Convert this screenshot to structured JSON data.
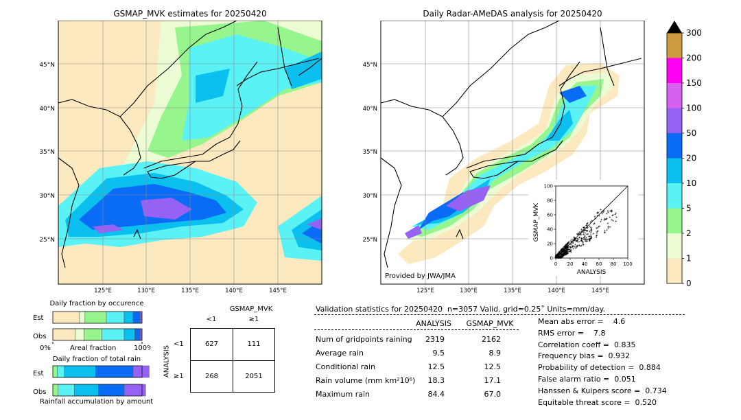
{
  "left_map": {
    "title": "GSMAP_MVK estimates for 20250420",
    "lat_ticks": [
      "25°N",
      "30°N",
      "35°N",
      "40°N",
      "45°N"
    ],
    "lon_ticks": [
      "125°E",
      "130°E",
      "135°E",
      "140°E",
      "145°E"
    ]
  },
  "right_map": {
    "title": "Daily Radar-AMeDAS analysis for 20250420",
    "lat_ticks": [
      "25°N",
      "30°N",
      "35°N",
      "40°N",
      "45°N"
    ],
    "lon_ticks": [
      "125°E",
      "130°E",
      "135°E",
      "140°E",
      "145°E"
    ],
    "credit": "Provided by JWA/JMA"
  },
  "colorbar": {
    "labels": [
      "0",
      "1",
      "2",
      "5",
      "10",
      "20",
      "50",
      "100",
      "150",
      "200",
      "300"
    ],
    "colors": [
      "#fde9c0",
      "#ebfbd4",
      "#96f58c",
      "#5af2f4",
      "#0bc0ee",
      "#0a6bf5",
      "#9562f4",
      "#d860f1",
      "#fd00f3",
      "#cc9a3f"
    ],
    "extend_color": "#000000"
  },
  "chart_data": {
    "type": "scatter",
    "xlabel": "ANALYSIS",
    "ylabel": "GSMAP_MVK",
    "xlim": [
      0,
      100
    ],
    "ylim": [
      0,
      100
    ],
    "xticks": [
      "0",
      "20",
      "40",
      "60",
      "80",
      "100"
    ],
    "yticks": [
      "0",
      "20",
      "40",
      "60",
      "80",
      "100"
    ],
    "diagonal": true
  },
  "occurrence": {
    "title": "Daily fraction by occurence",
    "rows": [
      {
        "label": "Est",
        "fractions": [
          0.3,
          0.06,
          0.24,
          0.2,
          0.1,
          0.08,
          0.02
        ]
      },
      {
        "label": "Obs",
        "fractions": [
          0.25,
          0.1,
          0.2,
          0.25,
          0.12,
          0.06,
          0.02
        ]
      }
    ],
    "axis_left": "0%",
    "axis_mid": "Areal fraction",
    "axis_right": "100%"
  },
  "total_rain": {
    "title": "Daily fraction of total rain",
    "rows": [
      {
        "label": "Est",
        "fractions": [
          0.05,
          0.08,
          0.35,
          0.42,
          0.18
        ]
      },
      {
        "label": "Obs",
        "fractions": [
          0.06,
          0.18,
          0.27,
          0.29,
          0.24
        ]
      }
    ],
    "footer": "Rainfall accumulation by amount"
  },
  "contingency": {
    "title": "GSMAP_MVK",
    "col_lt": "<1",
    "col_ge": "≥1",
    "side_label": "ANALYSIS",
    "row_lt": "<1",
    "row_ge": "≥1",
    "cells": [
      "627",
      "111",
      "268",
      "2051"
    ]
  },
  "validation": {
    "header": "Validation statistics for 20250420  n=3057 Valid. grid=0.25˚ Units=mm/day.",
    "col_analysis": "ANALYSIS",
    "col_gsmap": "GSMAP_MVK",
    "rows": [
      {
        "label": "Num of gridpoints raining",
        "analysis": "2319",
        "gsmap": "2162"
      },
      {
        "label": "Average rain",
        "analysis": "9.5",
        "gsmap": "8.9"
      },
      {
        "label": "Conditional rain",
        "analysis": "12.5",
        "gsmap": "12.5"
      },
      {
        "label": "Rain volume (mm km²10⁶)",
        "analysis": "18.3",
        "gsmap": "17.1"
      },
      {
        "label": "Maximum rain",
        "analysis": "84.4",
        "gsmap": "67.0"
      }
    ],
    "scores": [
      "Mean abs error =    4.6",
      "RMS error =    7.8",
      "Correlation coeff =  0.835",
      "Frequency bias =  0.932",
      "Probability of detection =  0.884",
      "False alarm ratio =  0.051",
      "Hanssen & Kuipers score =  0.734",
      "Equitable threat score =  0.520"
    ]
  }
}
